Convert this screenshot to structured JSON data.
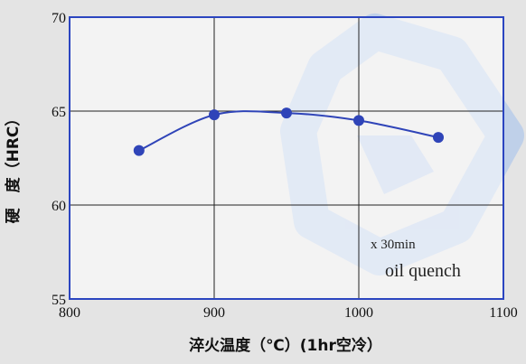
{
  "colors": {
    "background": "#e4e4e4",
    "plot_background": "#ffffff",
    "frame": "#2b45c0",
    "grid": "#222222",
    "series": "#2f44b8",
    "watermark": "#b9ccea"
  },
  "chart_data": {
    "type": "line",
    "title": "",
    "xlabel": "淬火温度（℃）(1hr空冷）",
    "ylabel": "硬　度（HRC）",
    "xlim": [
      800,
      1100
    ],
    "ylim": [
      55,
      70
    ],
    "x_ticks": [
      "800",
      "900",
      "1000",
      "1100"
    ],
    "y_ticks": [
      "55",
      "60",
      "65",
      "70"
    ],
    "grid": true,
    "smooth": true,
    "series": [
      {
        "name": "",
        "x": [
          848,
          900,
          950,
          1000,
          1055
        ],
        "y": [
          62.9,
          64.8,
          64.9,
          64.5,
          63.6
        ]
      }
    ],
    "annotations": [
      "x 30min",
      "oil quench"
    ]
  }
}
